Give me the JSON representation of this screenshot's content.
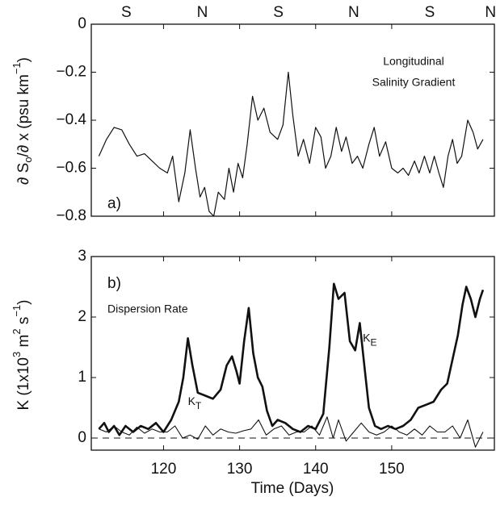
{
  "chart_data": [
    {
      "type": "line",
      "ylabel_parts": [
        "∂ S",
        "o",
        "/∂ x  (psu km",
        "−1",
        ")"
      ],
      "annotations": [
        "Longitudinal",
        "Salinity Gradient",
        "a)"
      ],
      "top_labels": {
        "x": [
          115.1,
          125.1,
          135.1,
          145.0,
          155.0,
          163.0
        ],
        "labels": [
          "S",
          "N",
          "S",
          "N",
          "S",
          "N"
        ]
      },
      "xlim": [
        110.5,
        163.5
      ],
      "xticks": [
        120,
        130,
        140,
        150
      ],
      "xtick_labels": false,
      "ylim": [
        -0.8,
        0
      ],
      "yticks": [
        {
          "value": -0.8,
          "label": "−0.8"
        },
        {
          "value": -0.6,
          "label": "−0.6"
        },
        {
          "value": -0.4,
          "label": "−0.4"
        },
        {
          "value": -0.2,
          "label": "−0.2"
        },
        0
      ],
      "series": [
        {
          "color": "#111111",
          "width": 1.2,
          "x": [
            111.5,
            112.5,
            113.5,
            114.5,
            115.5,
            116.5,
            117.5,
            118.5,
            119.5,
            120.5,
            121.2,
            122,
            122.8,
            123.5,
            124.2,
            124.8,
            125.4,
            126,
            126.6,
            127.2,
            128,
            128.6,
            129.2,
            129.8,
            130.4,
            131,
            131.7,
            132.4,
            133.2,
            134,
            135,
            135.7,
            136.4,
            137,
            137.7,
            138.4,
            139.2,
            140,
            140.7,
            141.3,
            142,
            142.7,
            143.4,
            144,
            144.8,
            145.5,
            146.2,
            147,
            147.7,
            148.4,
            149.2,
            150,
            150.8,
            151.5,
            152.2,
            153,
            153.6,
            154.3,
            155,
            155.6,
            156.2,
            156.8,
            157.4,
            158,
            158.6,
            159.2,
            160,
            160.7,
            161.3,
            162
          ],
          "values": [
            -0.55,
            -0.48,
            -0.43,
            -0.44,
            -0.5,
            -0.55,
            -0.54,
            -0.57,
            -0.6,
            -0.62,
            -0.55,
            -0.74,
            -0.62,
            -0.44,
            -0.6,
            -0.72,
            -0.68,
            -0.78,
            -0.8,
            -0.7,
            -0.73,
            -0.6,
            -0.7,
            -0.58,
            -0.64,
            -0.5,
            -0.3,
            -0.4,
            -0.35,
            -0.45,
            -0.48,
            -0.42,
            -0.2,
            -0.38,
            -0.55,
            -0.48,
            -0.58,
            -0.43,
            -0.47,
            -0.6,
            -0.55,
            -0.43,
            -0.53,
            -0.47,
            -0.58,
            -0.55,
            -0.6,
            -0.5,
            -0.43,
            -0.55,
            -0.49,
            -0.6,
            -0.62,
            -0.6,
            -0.63,
            -0.57,
            -0.62,
            -0.55,
            -0.62,
            -0.55,
            -0.62,
            -0.68,
            -0.55,
            -0.48,
            -0.58,
            -0.55,
            -0.4,
            -0.45,
            -0.52,
            -0.48
          ]
        }
      ]
    },
    {
      "type": "line",
      "ylabel_parts": [
        "K (1x10",
        "3",
        " m",
        "2",
        " s",
        "−1",
        ")"
      ],
      "xlabel": "Time (Days)",
      "annotations": [
        "b)",
        "Dispersion Rate"
      ],
      "xlim": [
        110.5,
        163.5
      ],
      "xticks": [
        120,
        130,
        140,
        150
      ],
      "ylim": [
        -0.2,
        3
      ],
      "yticks": [
        0,
        1,
        2,
        3
      ],
      "zero_line": true,
      "series": [
        {
          "label": [
            "K",
            "E"
          ],
          "color": "#111111",
          "width": 2.6,
          "x": [
            111.5,
            112.2,
            112.8,
            113.5,
            114.2,
            115,
            116,
            117,
            118,
            119,
            120,
            121,
            122,
            122.6,
            123.2,
            123.8,
            124.5,
            125.5,
            126.5,
            127.5,
            128.3,
            129,
            129.6,
            130,
            130.6,
            131.2,
            131.8,
            132.4,
            133,
            133.6,
            134.3,
            135,
            136,
            137,
            138,
            139,
            140,
            141,
            141.8,
            142.4,
            143,
            143.8,
            144.5,
            145.2,
            145.8,
            146.4,
            147,
            147.8,
            148.6,
            149.5,
            150.5,
            151.5,
            152.5,
            153.5,
            154.5,
            155.5,
            156.5,
            157.3,
            158,
            158.7,
            159.3,
            159.8,
            160.4,
            161,
            161.6,
            162
          ],
          "values": [
            0.15,
            0.25,
            0.1,
            0.2,
            0.05,
            0.2,
            0.1,
            0.2,
            0.15,
            0.25,
            0.1,
            0.3,
            0.6,
            1.0,
            1.65,
            1.2,
            0.75,
            0.7,
            0.65,
            0.8,
            1.2,
            1.35,
            1.1,
            0.9,
            1.6,
            2.15,
            1.4,
            1.0,
            0.85,
            0.45,
            0.2,
            0.3,
            0.25,
            0.15,
            0.1,
            0.2,
            0.15,
            0.4,
            1.5,
            2.55,
            2.3,
            2.4,
            1.6,
            1.45,
            1.9,
            1.2,
            0.5,
            0.2,
            0.15,
            0.2,
            0.15,
            0.2,
            0.3,
            0.5,
            0.55,
            0.6,
            0.8,
            0.9,
            1.3,
            1.7,
            2.2,
            2.5,
            2.3,
            2.0,
            2.3,
            2.45
          ],
          "label_at": [
            146.2,
            1.65
          ]
        },
        {
          "label": [
            "K",
            "T"
          ],
          "color": "#111111",
          "width": 1.1,
          "x": [
            111.5,
            112.5,
            113.5,
            114.5,
            115.5,
            116.5,
            117.5,
            118.5,
            119.5,
            120.5,
            121.5,
            122.5,
            123.5,
            124.5,
            125.5,
            126.5,
            127.5,
            128.5,
            129.5,
            130.5,
            131.5,
            132.5,
            133.5,
            134.5,
            135.5,
            136.5,
            137.5,
            138.5,
            139.5,
            140.5,
            141.5,
            142.3,
            143,
            144,
            145,
            146,
            147,
            148,
            149,
            150,
            151,
            152,
            153,
            154,
            155,
            156,
            157,
            158,
            159,
            160,
            161,
            162
          ],
          "values": [
            0.15,
            0.1,
            0.2,
            0.1,
            0.05,
            0.18,
            0.08,
            0.15,
            0.1,
            0.1,
            0.2,
            0.0,
            0.05,
            -0.02,
            0.2,
            0.05,
            0.15,
            0.1,
            0.08,
            0.12,
            0.15,
            0.3,
            0.05,
            0.15,
            0.2,
            0.05,
            0.1,
            0.1,
            0.2,
            0.05,
            0.35,
            0.0,
            0.3,
            -0.05,
            0.1,
            0.25,
            0.1,
            0.05,
            0.1,
            0.2,
            0.1,
            0.05,
            0.15,
            0.05,
            0.2,
            0.1,
            0.1,
            0.2,
            0.0,
            0.3,
            -0.15,
            0.1
          ],
          "label_at": [
            123.2,
            0.6
          ]
        }
      ]
    }
  ]
}
